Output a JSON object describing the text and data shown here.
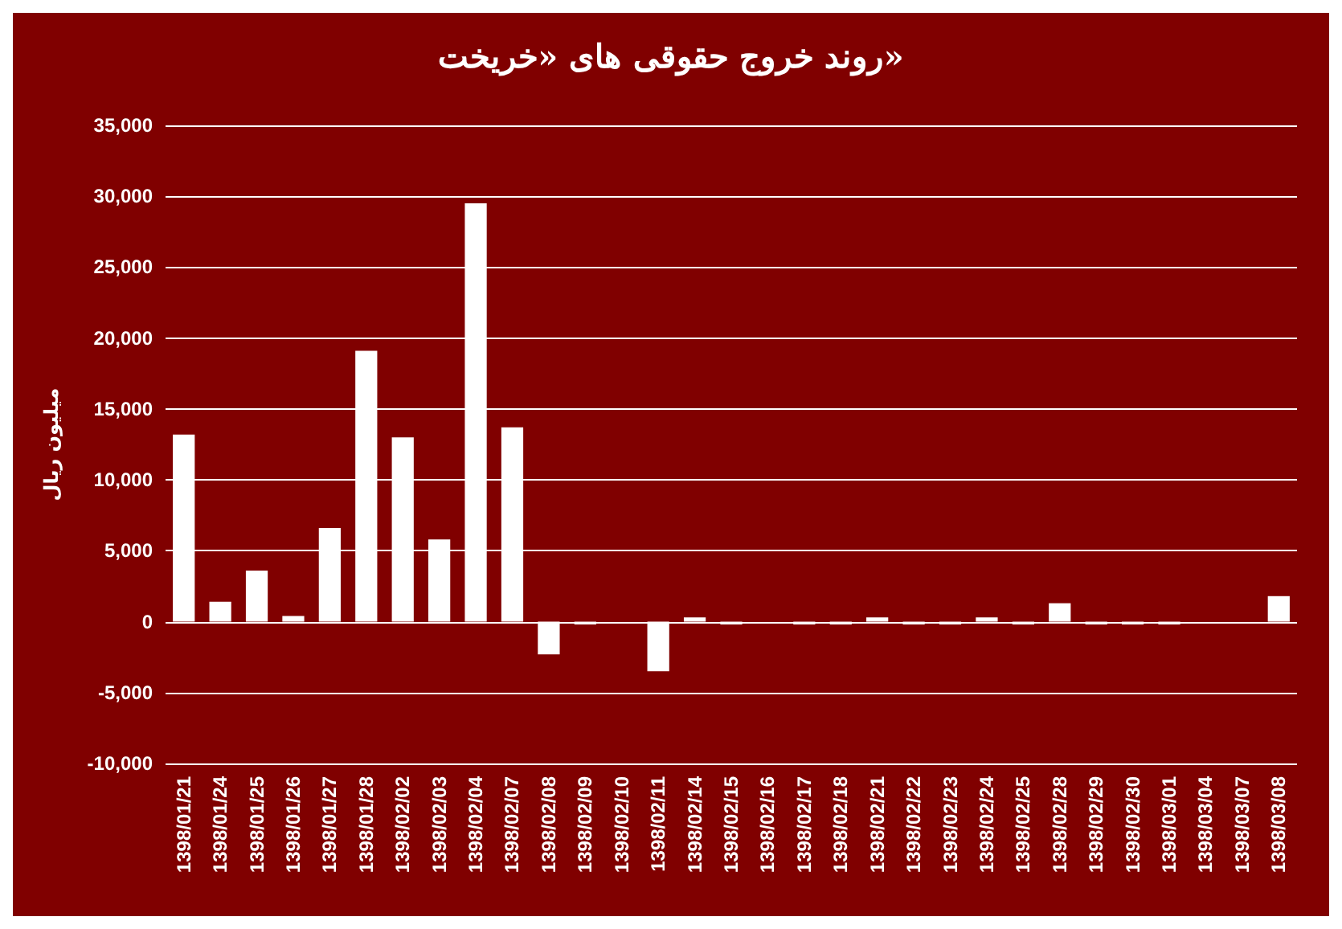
{
  "chart_data": {
    "type": "bar",
    "title": "روند خروج حقوقی های «خریخت»",
    "ylabel": "میلیون ریال",
    "categories": [
      "1398/01/21",
      "1398/01/24",
      "1398/01/25",
      "1398/01/26",
      "1398/01/27",
      "1398/01/28",
      "1398/02/02",
      "1398/02/03",
      "1398/02/04",
      "1398/02/07",
      "1398/02/08",
      "1398/02/09",
      "1398/02/10",
      "1398/02/11",
      "1398/02/14",
      "1398/02/15",
      "1398/02/16",
      "1398/02/17",
      "1398/02/18",
      "1398/02/21",
      "1398/02/22",
      "1398/02/23",
      "1398/02/24",
      "1398/02/25",
      "1398/02/28",
      "1398/02/29",
      "1398/02/30",
      "1398/03/01",
      "1398/03/04",
      "1398/03/07",
      "1398/03/08"
    ],
    "values": [
      13200,
      1400,
      3600,
      400,
      6600,
      19100,
      13000,
      5800,
      29500,
      13700,
      -2300,
      -200,
      0,
      -3500,
      300,
      -200,
      0,
      -200,
      -200,
      300,
      -200,
      -200,
      300,
      -200,
      1300,
      -200,
      -200,
      -200,
      0,
      0,
      1800
    ],
    "color": "#ffffff",
    "ylim": [
      -10000,
      35000
    ],
    "yticks": [
      {
        "value": -10000,
        "label": "-10,000"
      },
      {
        "value": -5000,
        "label": "-5,000"
      },
      0,
      {
        "value": 5000,
        "label": "5,000"
      },
      {
        "value": 10000,
        "label": "10,000"
      },
      {
        "value": 15000,
        "label": "15,000"
      },
      {
        "value": 20000,
        "label": "20,000"
      },
      {
        "value": 25000,
        "label": "25,000"
      },
      {
        "value": 30000,
        "label": "30,000"
      },
      {
        "value": 35000,
        "label": "35,000"
      }
    ],
    "grid": "y"
  }
}
